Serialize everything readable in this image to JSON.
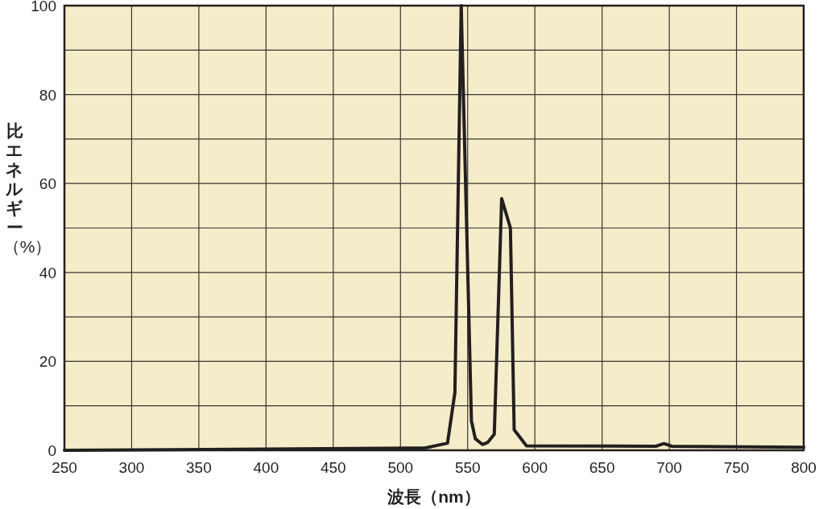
{
  "chart_data": {
    "type": "line",
    "xlabel": "波長（nm）",
    "ylabel": "比エネルギー（%）",
    "xlim": [
      250,
      800
    ],
    "ylim": [
      0,
      100
    ],
    "xticks": [
      250,
      300,
      350,
      400,
      450,
      500,
      550,
      600,
      650,
      700,
      750,
      800
    ],
    "yticks": [
      0,
      20,
      40,
      60,
      80,
      100
    ],
    "grid": true,
    "marker": "none",
    "line_style": "solid",
    "series": [
      {
        "color": "#231f20",
        "x": [
          250,
          518,
          535,
          540.5,
          545.2,
          552.8,
          555.7,
          561,
          565,
          569.8,
          575.3,
          581.8,
          584.6,
          593.8,
          690,
          696,
          702,
          800
        ],
        "values": [
          0,
          0.5,
          1.6,
          13,
          100,
          6.6,
          2.6,
          1.3,
          1.8,
          3.6,
          56.6,
          50,
          4.6,
          1,
          0.9,
          1.5,
          0.9,
          0.7
        ]
      }
    ]
  }
}
